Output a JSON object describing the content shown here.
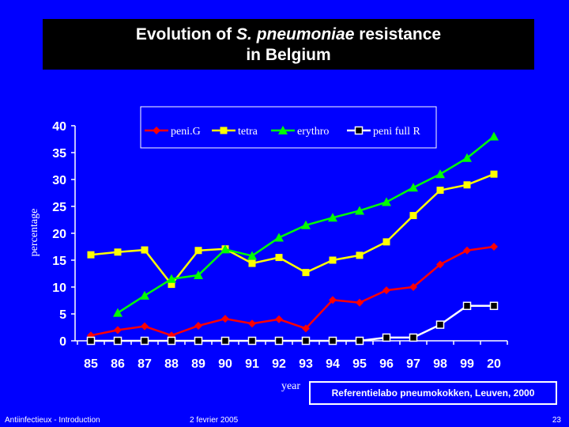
{
  "slide": {
    "title_line1_pre": "Evolution of ",
    "title_line1_italic": "S. pneumoniae",
    "title_line1_post": " resistance",
    "title_line2": "in Belgium",
    "source": "Referentielabo pneumokokken, Leuven, 2000",
    "footer_left": "Antiinfectieux - Introduction",
    "footer_center": "2 fevrier 2005",
    "footer_right": "23"
  },
  "colors": {
    "background": "#0000ff",
    "title_bg": "#000000",
    "peniG": "#ff0000",
    "tetra": "#ffff00",
    "erythro": "#00ff00",
    "peni_full_R": "#ffffff"
  },
  "chart_data": {
    "type": "line",
    "title": "",
    "xlabel": "year",
    "ylabel": "percentage",
    "categories": [
      "85",
      "86",
      "87",
      "88",
      "89",
      "90",
      "91",
      "92",
      "93",
      "94",
      "95",
      "96",
      "97",
      "98",
      "99",
      "20"
    ],
    "ylim": [
      0,
      40
    ],
    "yticks": [
      0,
      5,
      10,
      15,
      20,
      25,
      30,
      35,
      40
    ],
    "grid": false,
    "legend_position": "top",
    "series": [
      {
        "name": "peni.G",
        "marker": "diamond",
        "color": "#ff0000",
        "values": [
          1,
          2,
          2.7,
          1,
          2.8,
          4.1,
          3.2,
          4,
          2.3,
          7.6,
          7.1,
          9.4,
          10,
          14.2,
          16.8,
          17.5
        ]
      },
      {
        "name": "tetra",
        "marker": "square",
        "color": "#ffff00",
        "values": [
          16,
          16.5,
          16.9,
          10.5,
          16.8,
          17.1,
          14.4,
          15.5,
          12.7,
          15,
          15.9,
          18.4,
          23.3,
          28,
          29,
          31
        ]
      },
      {
        "name": "erythro",
        "marker": "triangle",
        "color": "#00ff00",
        "values": [
          null,
          5.2,
          8.4,
          11.5,
          12.2,
          17,
          15.8,
          19.2,
          21.5,
          22.9,
          24.2,
          25.8,
          28.5,
          31,
          34,
          38
        ]
      },
      {
        "name": "peni full R",
        "marker": "square",
        "color": "#ffffff",
        "values": [
          0,
          0,
          0,
          0,
          0,
          0,
          0,
          0,
          0,
          0,
          0,
          0.6,
          0.6,
          3,
          6.5,
          6.5
        ]
      }
    ]
  }
}
